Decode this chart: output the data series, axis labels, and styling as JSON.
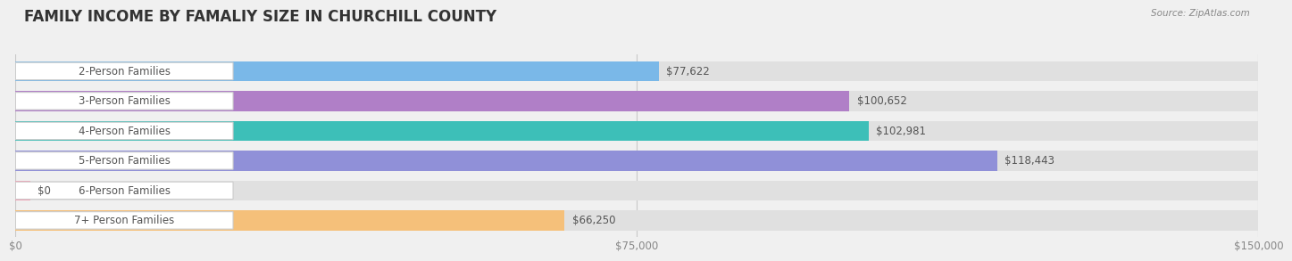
{
  "title": "FAMILY INCOME BY FAMALIY SIZE IN CHURCHILL COUNTY",
  "source": "Source: ZipAtlas.com",
  "categories": [
    "2-Person Families",
    "3-Person Families",
    "4-Person Families",
    "5-Person Families",
    "6-Person Families",
    "7+ Person Families"
  ],
  "values": [
    77622,
    100652,
    102981,
    118443,
    0,
    66250
  ],
  "bar_colors": [
    "#7ab8e8",
    "#b07fc7",
    "#3dbfb8",
    "#9090d8",
    "#f49ab0",
    "#f5c07a"
  ],
  "xlim": [
    0,
    150000
  ],
  "xticks": [
    0,
    75000,
    150000
  ],
  "xtick_labels": [
    "$0",
    "$75,000",
    "$150,000"
  ],
  "value_labels": [
    "$77,622",
    "$100,652",
    "$102,981",
    "$118,443",
    "$0",
    "$66,250"
  ],
  "background_color": "#f0f0f0",
  "bar_bg_color": "#e0e0e0",
  "title_fontsize": 12,
  "label_fontsize": 8.5,
  "value_fontsize": 8.5,
  "tick_fontsize": 8.5
}
